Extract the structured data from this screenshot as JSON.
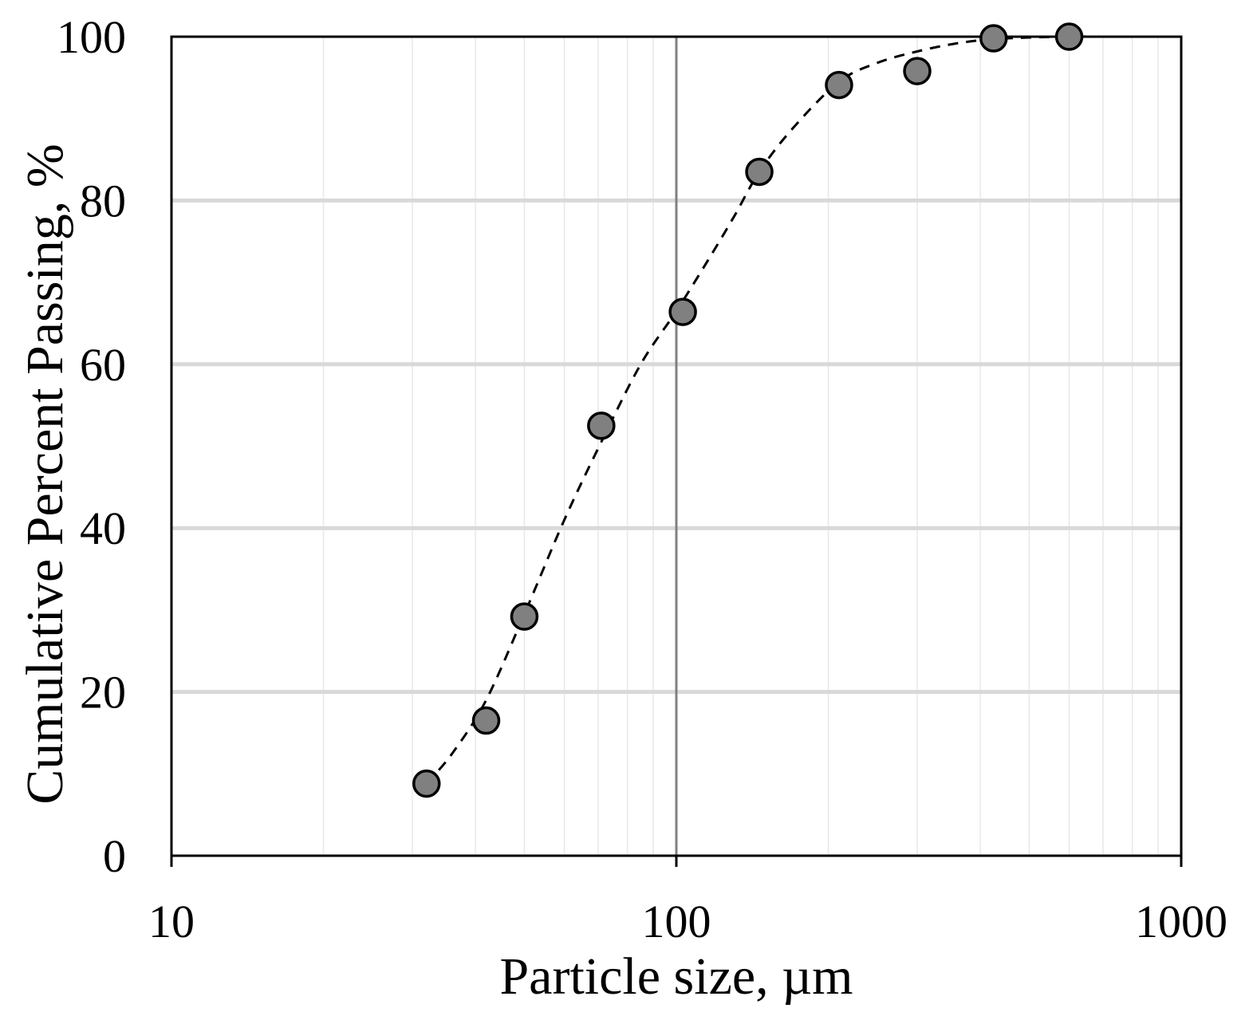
{
  "chart_data": {
    "type": "scatter",
    "xlabel": "Particle size, µm",
    "ylabel": "Cumulative Percent Passing, %",
    "xscale": "log",
    "xlim": [
      10,
      1000
    ],
    "ylim": [
      0,
      100
    ],
    "xticks": [
      10,
      100,
      1000
    ],
    "yticks": [
      0,
      20,
      40,
      60,
      80,
      100
    ],
    "grid": {
      "major_y": true,
      "minor_x": true
    },
    "vline_x": 100,
    "series": [
      {
        "style": "marker",
        "marker_color": "#808080",
        "x": [
          32,
          42,
          50,
          71,
          103,
          146,
          210,
          300,
          425,
          600
        ],
        "y": [
          8.8,
          16.5,
          29.2,
          52.5,
          66.4,
          83.5,
          94.1,
          95.8,
          99.8,
          100.0
        ]
      },
      {
        "style": "dashed-line",
        "x": [
          32,
          36,
          42,
          50,
          60,
          71,
          85,
          100,
          115,
          130,
          146,
          170,
          210,
          250,
          300,
          360,
          425,
          500,
          600,
          700
        ],
        "y": [
          8.8,
          12.5,
          19.0,
          29.5,
          41.0,
          50.5,
          60.0,
          66.5,
          72.5,
          78.0,
          83.5,
          88.8,
          94.5,
          96.8,
          98.2,
          99.2,
          99.7,
          99.9,
          100.0,
          100.0
        ]
      }
    ]
  }
}
